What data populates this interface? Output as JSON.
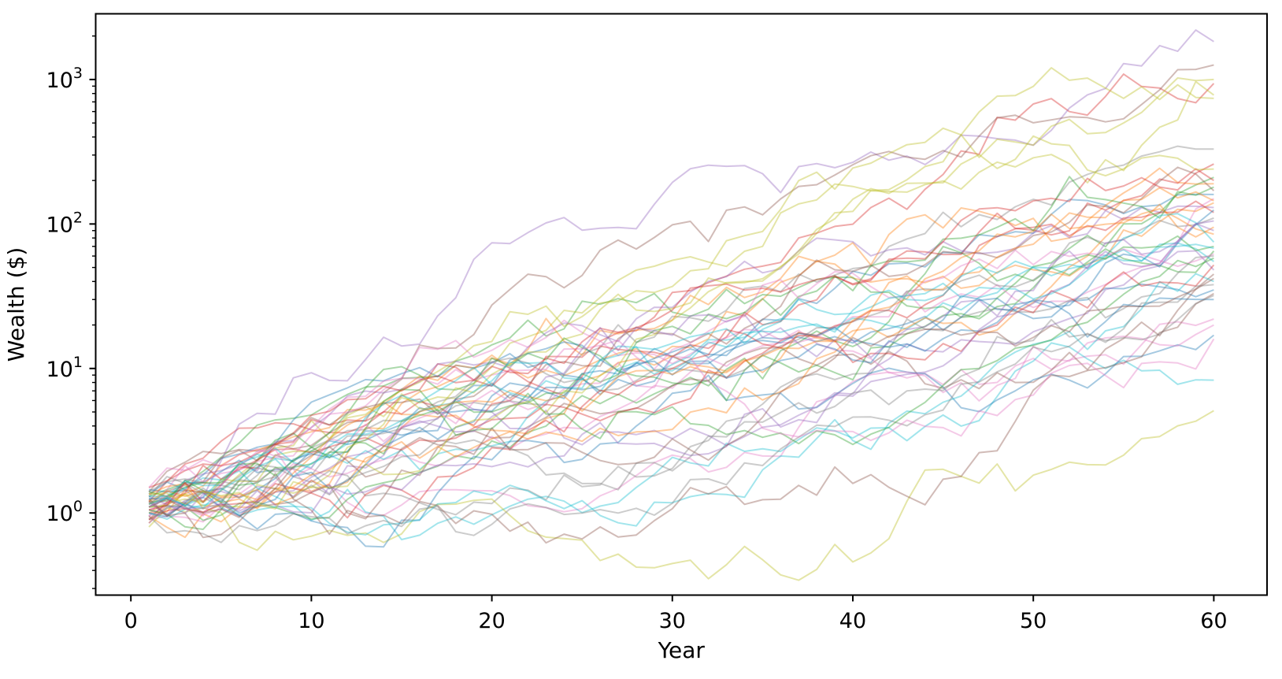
{
  "figure": {
    "background": "#ffffff",
    "axis_color": "#000000"
  },
  "chart_data": {
    "type": "line",
    "title": "",
    "xlabel": "Year",
    "ylabel": "Wealth ($)",
    "x_scale": "linear",
    "y_scale": "log",
    "grid": false,
    "legend": "none",
    "xlim": [
      -1.95,
      62.95
    ],
    "ylim": [
      0.27,
      2850
    ],
    "x_ticks": [
      0,
      10,
      20,
      30,
      40,
      50,
      60
    ],
    "y_ticks": [
      {
        "value": 1,
        "base": "10",
        "exponent": "0"
      },
      {
        "value": 10,
        "base": "10",
        "exponent": "1"
      },
      {
        "value": 100,
        "base": "10",
        "exponent": "2"
      },
      {
        "value": 1000,
        "base": "10",
        "exponent": "3"
      }
    ],
    "x_start_year": 1,
    "x_end_year": 60,
    "n_series": 50,
    "line_alpha": 0.4,
    "line_width": 2,
    "palette": [
      "#1f77b4",
      "#ff7f0e",
      "#2ca02c",
      "#d62728",
      "#9467bd",
      "#8c564b",
      "#e377c2",
      "#7f7f7f",
      "#bcbd22",
      "#17becf"
    ],
    "series_note": "50 simulated wealth random-walk paths; start = wealth at year 1, end = wealth at year 60 (read from plot); vol = per-year log10 volatility; seed drives the deterministic wiggle.",
    "series": [
      {
        "seed": 11,
        "start": 1.1,
        "end": 160,
        "vol": 0.07
      },
      {
        "seed": 23,
        "start": 0.95,
        "end": 140,
        "vol": 0.08
      },
      {
        "seed": 37,
        "start": 1.3,
        "end": 210,
        "vol": 0.072
      },
      {
        "seed": 41,
        "start": 1.2,
        "end": 940,
        "vol": 0.085
      },
      {
        "seed": 53,
        "start": 1.05,
        "end": 1830,
        "vol": 0.09
      },
      {
        "seed": 67,
        "start": 1.4,
        "end": 1260,
        "vol": 0.088
      },
      {
        "seed": 71,
        "start": 0.9,
        "end": 22,
        "vol": 0.078
      },
      {
        "seed": 83,
        "start": 1.15,
        "end": 330,
        "vol": 0.074
      },
      {
        "seed": 97,
        "start": 1.0,
        "end": 780,
        "vol": 0.082
      },
      {
        "seed": 101,
        "start": 1.25,
        "end": 8.3,
        "vol": 0.08
      },
      {
        "seed": 113,
        "start": 1.35,
        "end": 35,
        "vol": 0.068
      },
      {
        "seed": 127,
        "start": 0.85,
        "end": 190,
        "vol": 0.079
      },
      {
        "seed": 131,
        "start": 1.1,
        "end": 65,
        "vol": 0.071
      },
      {
        "seed": 139,
        "start": 1.5,
        "end": 200,
        "vol": 0.083
      },
      {
        "seed": 149,
        "start": 0.95,
        "end": 130,
        "vol": 0.076
      },
      {
        "seed": 151,
        "start": 1.2,
        "end": 45,
        "vol": 0.086
      },
      {
        "seed": 163,
        "start": 1.05,
        "end": 150,
        "vol": 0.069
      },
      {
        "seed": 167,
        "start": 1.3,
        "end": 60,
        "vol": 0.077
      },
      {
        "seed": 179,
        "start": 0.8,
        "end": 5.1,
        "vol": 0.092
      },
      {
        "seed": 181,
        "start": 1.1,
        "end": 55,
        "vol": 0.073
      },
      {
        "seed": 191,
        "start": 1.45,
        "end": 17,
        "vol": 0.081
      },
      {
        "seed": 193,
        "start": 1.0,
        "end": 95,
        "vol": 0.075
      },
      {
        "seed": 197,
        "start": 1.2,
        "end": 70,
        "vol": 0.084
      },
      {
        "seed": 199,
        "start": 0.9,
        "end": 120,
        "vol": 0.07
      },
      {
        "seed": 211,
        "start": 1.3,
        "end": 48,
        "vol": 0.078
      },
      {
        "seed": 223,
        "start": 1.15,
        "end": 170,
        "vol": 0.072
      },
      {
        "seed": 227,
        "start": 0.95,
        "end": 20,
        "vol": 0.088
      },
      {
        "seed": 229,
        "start": 1.4,
        "end": 110,
        "vol": 0.066
      },
      {
        "seed": 233,
        "start": 1.1,
        "end": 740,
        "vol": 0.086
      },
      {
        "seed": 239,
        "start": 1.0,
        "end": 40,
        "vol": 0.074
      },
      {
        "seed": 241,
        "start": 1.25,
        "end": 125,
        "vol": 0.08
      },
      {
        "seed": 251,
        "start": 1.35,
        "end": 85,
        "vol": 0.07
      },
      {
        "seed": 257,
        "start": 1.05,
        "end": 180,
        "vol": 0.082
      },
      {
        "seed": 263,
        "start": 0.9,
        "end": 52,
        "vol": 0.076
      },
      {
        "seed": 269,
        "start": 1.2,
        "end": 105,
        "vol": 0.079
      },
      {
        "seed": 271,
        "start": 1.1,
        "end": 33,
        "vol": 0.084
      },
      {
        "seed": 277,
        "start": 1.5,
        "end": 62,
        "vol": 0.071
      },
      {
        "seed": 281,
        "start": 0.95,
        "end": 38,
        "vol": 0.087
      },
      {
        "seed": 283,
        "start": 1.15,
        "end": 1000,
        "vol": 0.083
      },
      {
        "seed": 293,
        "start": 1.3,
        "end": 75,
        "vol": 0.069
      },
      {
        "seed": 307,
        "start": 1.0,
        "end": 30,
        "vol": 0.077
      },
      {
        "seed": 311,
        "start": 1.2,
        "end": 145,
        "vol": 0.073
      },
      {
        "seed": 313,
        "start": 1.4,
        "end": 58,
        "vol": 0.085
      },
      {
        "seed": 317,
        "start": 1.05,
        "end": 260,
        "vol": 0.075
      },
      {
        "seed": 331,
        "start": 0.85,
        "end": 90,
        "vol": 0.081
      },
      {
        "seed": 337,
        "start": 1.25,
        "end": 42,
        "vol": 0.078
      },
      {
        "seed": 347,
        "start": 1.1,
        "end": 16,
        "vol": 0.089
      },
      {
        "seed": 349,
        "start": 0.9,
        "end": 32,
        "vol": 0.072
      },
      {
        "seed": 353,
        "start": 1.35,
        "end": 240,
        "vol": 0.08
      },
      {
        "seed": 359,
        "start": 1.15,
        "end": 68,
        "vol": 0.076
      }
    ]
  }
}
